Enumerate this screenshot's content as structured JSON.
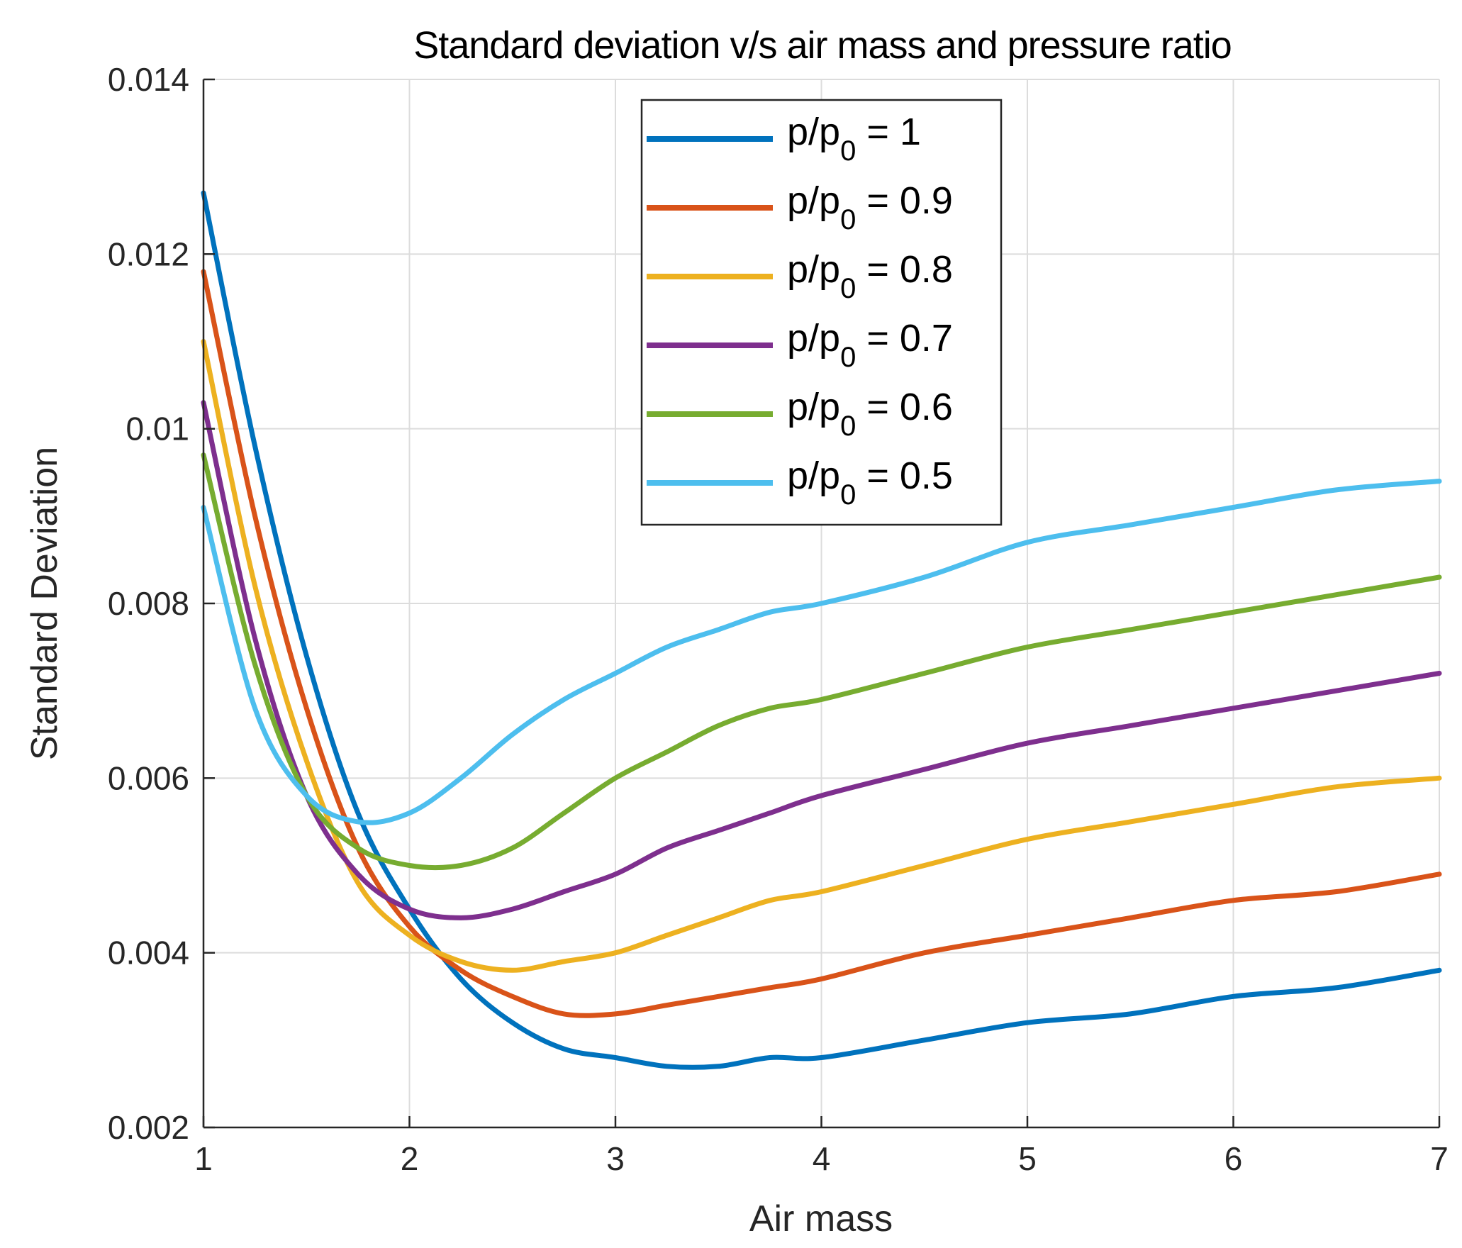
{
  "chart_data": {
    "type": "line",
    "title": "Standard deviation v/s air mass and pressure ratio",
    "xlabel": "Air mass",
    "ylabel": "Standard Deviation",
    "xlim": [
      1,
      7
    ],
    "ylim": [
      0.002,
      0.014
    ],
    "grid": true,
    "legend_position": "top-center",
    "x_ticks": [
      "1",
      "2",
      "3",
      "4",
      "5",
      "6",
      "7"
    ],
    "y_ticks": [
      "0.002",
      "0.004",
      "0.006",
      "0.008",
      "0.01",
      "0.012",
      "0.014"
    ],
    "x": [
      1.0,
      1.25,
      1.5,
      1.75,
      2.0,
      2.25,
      2.5,
      2.75,
      3.0,
      3.25,
      3.5,
      3.75,
      4.0,
      4.5,
      5.0,
      5.5,
      6.0,
      6.5,
      7.0
    ],
    "series": [
      {
        "name": "p/p0 = 1",
        "legend_main": "p/p",
        "legend_sub": "0",
        "legend_rest": " = 1",
        "color": "#0072BD",
        "values": [
          0.0127,
          0.0098,
          0.0074,
          0.0056,
          0.0045,
          0.0037,
          0.0032,
          0.0029,
          0.0028,
          0.0027,
          0.0027,
          0.0028,
          0.0028,
          0.003,
          0.0032,
          0.0033,
          0.0035,
          0.0036,
          0.0038
        ]
      },
      {
        "name": "p/p0 = 0.9",
        "legend_main": "p/p",
        "legend_sub": "0",
        "legend_rest": " = 0.9",
        "color": "#D95319",
        "values": [
          0.0118,
          0.009,
          0.0068,
          0.0052,
          0.0043,
          0.0038,
          0.0035,
          0.0033,
          0.0033,
          0.0034,
          0.0035,
          0.0036,
          0.0037,
          0.004,
          0.0042,
          0.0044,
          0.0046,
          0.0047,
          0.0049
        ]
      },
      {
        "name": "p/p0 = 0.8",
        "legend_main": "p/p",
        "legend_sub": "0",
        "legend_rest": " = 0.8",
        "color": "#EDB120",
        "values": [
          0.011,
          0.0082,
          0.0062,
          0.0048,
          0.0042,
          0.0039,
          0.0038,
          0.0039,
          0.004,
          0.0042,
          0.0044,
          0.0046,
          0.0047,
          0.005,
          0.0053,
          0.0055,
          0.0057,
          0.0059,
          0.006
        ]
      },
      {
        "name": "p/p0 = 0.7",
        "legend_main": "p/p",
        "legend_sub": "0",
        "legend_rest": " = 0.7",
        "color": "#7E2F8E",
        "values": [
          0.0103,
          0.0076,
          0.0058,
          0.0049,
          0.0045,
          0.0044,
          0.0045,
          0.0047,
          0.0049,
          0.0052,
          0.0054,
          0.0056,
          0.0058,
          0.0061,
          0.0064,
          0.0066,
          0.0068,
          0.007,
          0.0072
        ]
      },
      {
        "name": "p/p0 = 0.6",
        "legend_main": "p/p",
        "legend_sub": "0",
        "legend_rest": " = 0.6",
        "color": "#77AC30",
        "values": [
          0.0097,
          0.0073,
          0.0058,
          0.0052,
          0.005,
          0.005,
          0.0052,
          0.0056,
          0.006,
          0.0063,
          0.0066,
          0.0068,
          0.0069,
          0.0072,
          0.0075,
          0.0077,
          0.0079,
          0.0081,
          0.0083
        ]
      },
      {
        "name": "p/p0 = 0.5",
        "legend_main": "p/p",
        "legend_sub": "0",
        "legend_rest": " = 0.5",
        "color": "#4DBEEE",
        "values": [
          0.0091,
          0.0068,
          0.0058,
          0.0055,
          0.0056,
          0.006,
          0.0065,
          0.0069,
          0.0072,
          0.0075,
          0.0077,
          0.0079,
          0.008,
          0.0083,
          0.0087,
          0.0089,
          0.0091,
          0.0093,
          0.0094
        ]
      }
    ]
  }
}
